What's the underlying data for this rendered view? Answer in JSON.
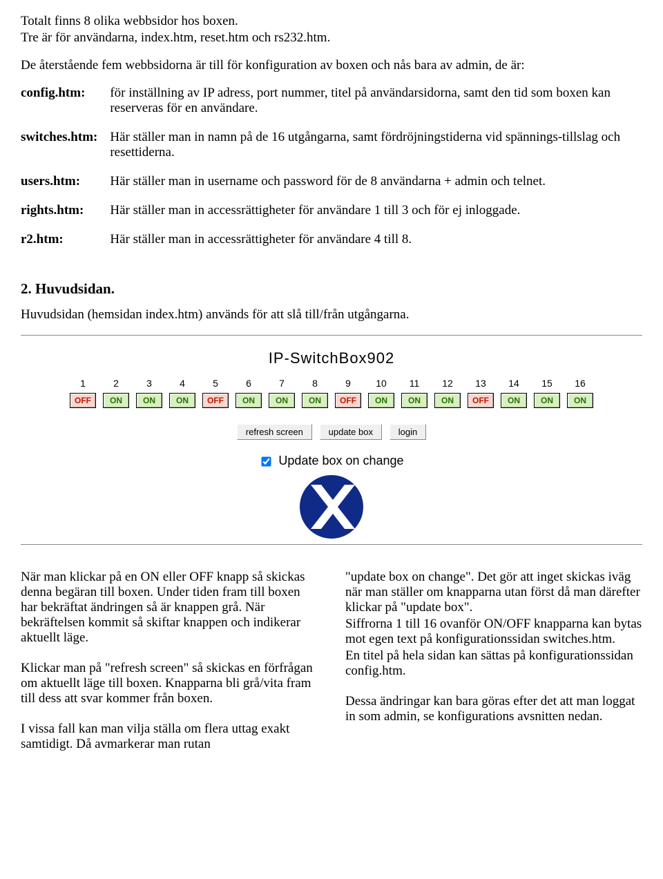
{
  "intro": {
    "line1": "Totalt finns 8 olika webbsidor hos boxen.",
    "line2": "Tre är för användarna, index.htm, reset.htm och rs232.htm.",
    "line3": "De återstående fem webbsidorna är till för konfiguration av boxen och nås bara av admin, de är:"
  },
  "defs": [
    {
      "term": "config.htm:",
      "desc": "för inställning av IP adress, port nummer, titel på användarsidorna,  samt den tid som boxen kan reserveras för en användare."
    },
    {
      "term": "switches.htm:",
      "desc": "Här ställer man in namn på de 16 utgångarna, samt fördröjningstiderna vid spännings-tillslag och resettiderna."
    },
    {
      "term": "users.htm:",
      "desc": "Här ställer man in username och password för de 8 användarna + admin och telnet."
    },
    {
      "term": "rights.htm:",
      "desc": "Här ställer man in accessrättigheter för användare 1 till 3 och för ej inloggade."
    },
    {
      "term": "r2.htm:",
      "desc": "Här ställer man in accessrättigheter för användare 4 till 8."
    }
  ],
  "section2": {
    "heading": "2. Huvudsidan.",
    "subtitle": "Huvudsidan (hemsidan index.htm) används för att slå till/från utgångarna."
  },
  "panel": {
    "title": "IP-SwitchBox902",
    "switches": [
      {
        "num": "1",
        "state": "OFF"
      },
      {
        "num": "2",
        "state": "ON"
      },
      {
        "num": "3",
        "state": "ON"
      },
      {
        "num": "4",
        "state": "ON"
      },
      {
        "num": "5",
        "state": "OFF"
      },
      {
        "num": "6",
        "state": "ON"
      },
      {
        "num": "7",
        "state": "ON"
      },
      {
        "num": "8",
        "state": "ON"
      },
      {
        "num": "9",
        "state": "OFF"
      },
      {
        "num": "10",
        "state": "ON"
      },
      {
        "num": "11",
        "state": "ON"
      },
      {
        "num": "12",
        "state": "ON"
      },
      {
        "num": "13",
        "state": "OFF"
      },
      {
        "num": "14",
        "state": "ON"
      },
      {
        "num": "15",
        "state": "ON"
      },
      {
        "num": "16",
        "state": "ON"
      }
    ],
    "state_colors": {
      "ON": {
        "bg": "#d7f0c0",
        "fg": "#2a6f00"
      },
      "OFF": {
        "bg": "#f7d7d0",
        "fg": "#c01800"
      }
    },
    "buttons": {
      "refresh": "refresh screen",
      "update": "update box",
      "login": "login"
    },
    "checkbox_label": "Update box on change",
    "checkbox_checked": true,
    "logo_color": "#102a88"
  },
  "columns": {
    "left": {
      "p1": "När man klickar på en ON eller OFF knapp så skickas denna begäran till boxen. Under tiden fram till boxen har bekräftat ändringen så är knappen grå. När bekräftelsen kommit så skiftar knappen och indikerar aktuellt läge.",
      "p2": "Klickar man på \"refresh screen\" så skickas en förfrågan om aktuellt läge till boxen. Knapparna bli grå/vita fram till dess att svar kommer från boxen.",
      "p3": "I vissa fall kan man vilja ställa om flera uttag exakt samtidigt. Då avmarkerar man rutan"
    },
    "right": {
      "p1": " \"update box on change\". Det gör att inget skickas iväg när man ställer om knapparna utan först då man därefter klickar på \"update box\".",
      "p2": "Siffrorna 1 till 16 ovanför ON/OFF knapparna kan bytas mot egen text på konfigurationssidan switches.htm.",
      "p3": "En titel på hela sidan kan sättas på konfigurationssidan config.htm.",
      "p4": "Dessa ändringar kan bara göras efter det att man loggat in som admin, se konfigurations avsnitten nedan."
    }
  }
}
